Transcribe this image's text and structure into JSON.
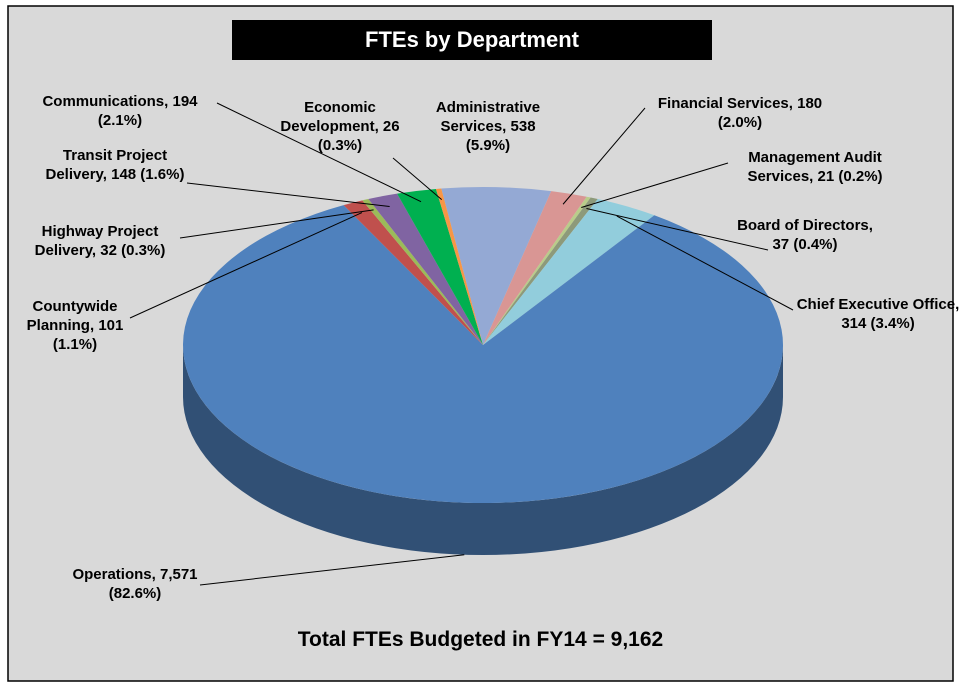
{
  "chart_data": {
    "type": "pie3d",
    "title": "FTEs by Department",
    "annotation": "Total FTEs Budgeted in FY14 = 9,162",
    "categories": [
      "Administrative Services,",
      "Financial Services,",
      "Management Audit Services,",
      "Board of Directors,",
      "Chief Executive Office,",
      "Operations,",
      "Countywide Planning,",
      "Highway Project Delivery,",
      "Transit Project Delivery,",
      "Communications,",
      "Economic Development,"
    ],
    "values": [
      538,
      180,
      21,
      37,
      314,
      7571,
      101,
      32,
      148,
      194,
      26
    ],
    "value_labels": [
      "538 (5.9%)",
      "180 (2.0%)",
      "21 (0.2%)",
      "37 (0.4%)",
      "314 (3.4%)",
      "7,571 (82.6%)",
      "101 (1.1%)",
      "32 (0.3%)",
      "148 (1.6%)",
      "194 (2.1%)",
      "26 (0.3%)"
    ],
    "colors": [
      "#94a9d4",
      "#d99694",
      "#b9cc8a",
      "#8d9a7a",
      "#92cddc",
      "#4f81bd",
      "#c0504d",
      "#9bbb59",
      "#8064a2",
      "#00b050",
      "#f79646"
    ]
  }
}
